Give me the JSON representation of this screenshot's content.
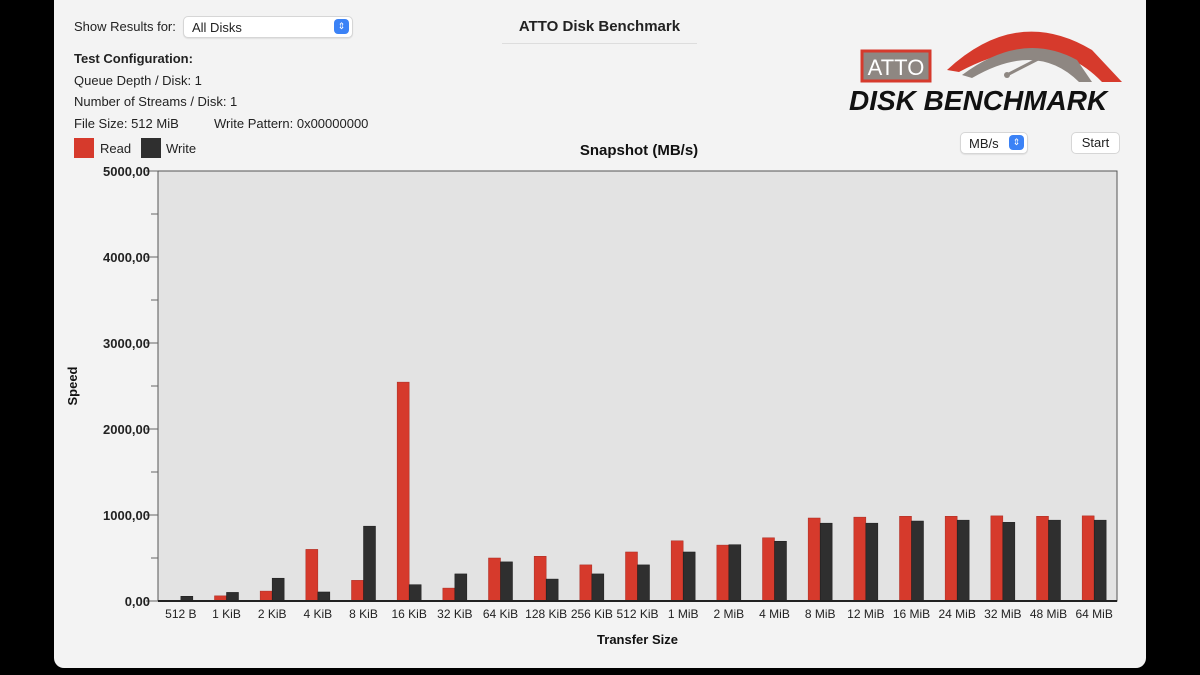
{
  "header": {
    "show_results_label": "Show Results for:",
    "disk_select": "All Disks",
    "title": "ATTO Disk Benchmark"
  },
  "config": {
    "heading": "Test Configuration:",
    "queue_depth": "Queue Depth / Disk: 1",
    "streams": "Number of Streams / Disk: 1",
    "file_size": "File Size: 512 MiB",
    "write_pattern": "Write Pattern: 0x00000000"
  },
  "logo": {
    "brand": "ATTO",
    "product": "DISK BENCHMARK"
  },
  "controls": {
    "unit_select": "MB/s",
    "start_label": "Start"
  },
  "colors": {
    "read": "#d63a2c",
    "write": "#2f2f2f",
    "plot_bg": "#e3e3e3"
  },
  "chart_data": {
    "type": "bar",
    "title": "Snapshot (MB/s)",
    "xlabel": "Transfer Size",
    "ylabel": "Speed",
    "ylim": [
      0,
      5000
    ],
    "yticks": [
      "0,00",
      "1000,00",
      "2000,00",
      "3000,00",
      "4000,00",
      "5000,00"
    ],
    "legend": {
      "placement": "top-left"
    },
    "categories": [
      "512 B",
      "1 KiB",
      "2 KiB",
      "4 KiB",
      "8 KiB",
      "16 KiB",
      "32 KiB",
      "64 KiB",
      "128 KiB",
      "256 KiB",
      "512 KiB",
      "1 MiB",
      "2 MiB",
      "4 MiB",
      "8 MiB",
      "12 MiB",
      "16 MiB",
      "24 MiB",
      "32 MiB",
      "48 MiB",
      "64 MiB"
    ],
    "series": [
      {
        "name": "Read",
        "values": [
          0,
          60,
          115,
          600,
          240,
          2545,
          150,
          500,
          520,
          420,
          570,
          700,
          650,
          735,
          965,
          975,
          985,
          985,
          990,
          985,
          990
        ]
      },
      {
        "name": "Write",
        "values": [
          55,
          100,
          265,
          105,
          870,
          190,
          315,
          455,
          255,
          315,
          420,
          570,
          655,
          695,
          905,
          905,
          930,
          940,
          915,
          940,
          940
        ]
      }
    ]
  }
}
